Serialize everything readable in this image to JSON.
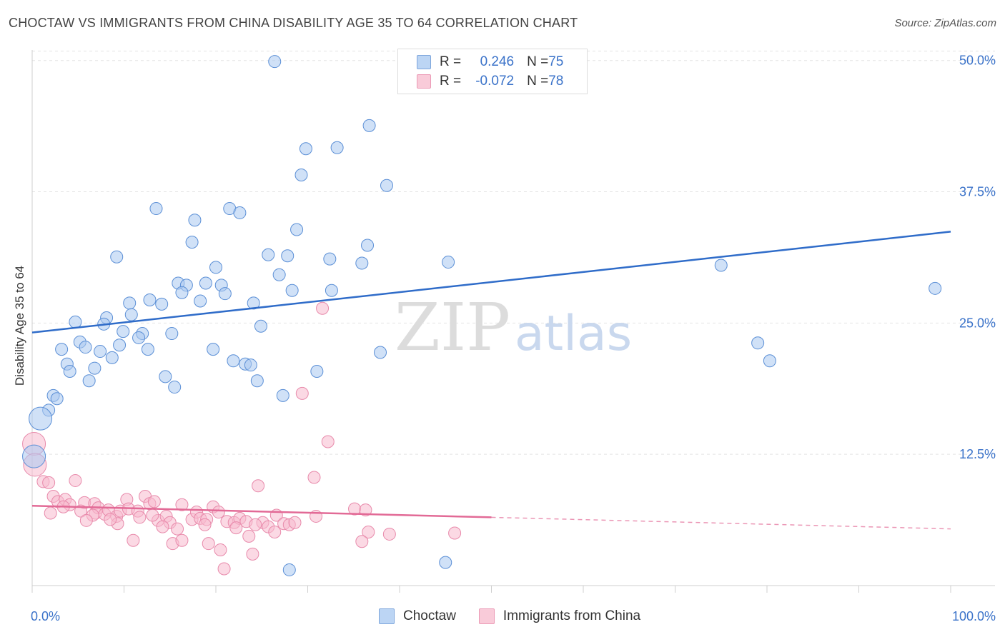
{
  "title": "CHOCTAW VS IMMIGRANTS FROM CHINA DISABILITY AGE 35 TO 64 CORRELATION CHART",
  "source": "Source: ZipAtlas.com",
  "watermark": {
    "zip": "ZIP",
    "atlas": "atlas"
  },
  "legend_top": {
    "rows": [
      {
        "r_label": "R = ",
        "r_value": "0.246",
        "n_label": "N = ",
        "n_value": "75",
        "color": "#a9c8f0"
      },
      {
        "r_label": "R = ",
        "r_value": "-0.072",
        "n_label": "N = ",
        "n_value": "78",
        "color": "#f7b9cd"
      }
    ]
  },
  "legend_bottom": {
    "items": [
      {
        "label": "Choctaw",
        "color": "#a9c8f0"
      },
      {
        "label": "Immigrants from China",
        "color": "#f7b9cd"
      }
    ]
  },
  "chart_data": {
    "type": "scatter",
    "title": "CHOCTAW VS IMMIGRANTS FROM CHINA DISABILITY AGE 35 TO 64 CORRELATION CHART",
    "xlabel": "",
    "ylabel": "Disability Age 35 to 64",
    "xlim": [
      0,
      100
    ],
    "ylim": [
      0,
      51
    ],
    "x_tick_labels": [
      "0.0%",
      "100.0%"
    ],
    "y_ticks": [
      12.5,
      25.0,
      37.5,
      50.0
    ],
    "y_tick_labels": [
      "12.5%",
      "25.0%",
      "37.5%",
      "50.0%"
    ],
    "grid": true,
    "legend_position": "top-center",
    "series": [
      {
        "name": "Choctaw",
        "color": "#5b8fd6",
        "fill": "#a9c8f0",
        "trend": {
          "x": [
            0,
            100
          ],
          "y": [
            24.1,
            33.7
          ],
          "style": "solid",
          "color": "#2f6cc9"
        },
        "points": [
          [
            26.4,
            49.9
          ],
          [
            36.7,
            43.8
          ],
          [
            29.8,
            41.6
          ],
          [
            33.2,
            41.7
          ],
          [
            13.5,
            35.9
          ],
          [
            21.5,
            35.9
          ],
          [
            22.6,
            35.5
          ],
          [
            17.7,
            34.8
          ],
          [
            29.3,
            39.1
          ],
          [
            28.8,
            33.9
          ],
          [
            17.4,
            32.7
          ],
          [
            36.5,
            32.4
          ],
          [
            38.6,
            38.1
          ],
          [
            9.2,
            31.3
          ],
          [
            25.7,
            31.5
          ],
          [
            27.8,
            31.4
          ],
          [
            32.4,
            31.1
          ],
          [
            35.9,
            30.7
          ],
          [
            20.0,
            30.3
          ],
          [
            26.9,
            29.6
          ],
          [
            15.9,
            28.8
          ],
          [
            18.9,
            28.8
          ],
          [
            16.8,
            28.6
          ],
          [
            20.6,
            28.6
          ],
          [
            28.3,
            28.1
          ],
          [
            32.6,
            28.1
          ],
          [
            16.3,
            27.9
          ],
          [
            21.0,
            27.8
          ],
          [
            12.8,
            27.2
          ],
          [
            18.3,
            27.1
          ],
          [
            10.6,
            26.9
          ],
          [
            14.1,
            26.8
          ],
          [
            24.1,
            26.9
          ],
          [
            8.1,
            25.5
          ],
          [
            10.8,
            25.8
          ],
          [
            4.7,
            25.1
          ],
          [
            7.8,
            24.9
          ],
          [
            24.9,
            24.7
          ],
          [
            12.0,
            24.0
          ],
          [
            15.2,
            24.0
          ],
          [
            9.9,
            24.2
          ],
          [
            5.2,
            23.2
          ],
          [
            11.6,
            23.6
          ],
          [
            9.5,
            22.9
          ],
          [
            3.2,
            22.5
          ],
          [
            5.8,
            22.7
          ],
          [
            7.4,
            22.3
          ],
          [
            12.6,
            22.5
          ],
          [
            19.7,
            22.5
          ],
          [
            8.7,
            21.7
          ],
          [
            21.9,
            21.4
          ],
          [
            23.2,
            21.1
          ],
          [
            23.8,
            21.0
          ],
          [
            3.8,
            21.1
          ],
          [
            4.1,
            20.4
          ],
          [
            6.8,
            20.7
          ],
          [
            31.0,
            20.4
          ],
          [
            14.5,
            19.9
          ],
          [
            6.2,
            19.5
          ],
          [
            15.5,
            18.9
          ],
          [
            24.5,
            19.5
          ],
          [
            27.3,
            18.1
          ],
          [
            2.3,
            18.1
          ],
          [
            2.7,
            17.8
          ],
          [
            1.8,
            16.7
          ],
          [
            0.9,
            15.9
          ],
          [
            37.9,
            22.2
          ],
          [
            45.3,
            30.8
          ],
          [
            75.0,
            30.5
          ],
          [
            79.0,
            23.1
          ],
          [
            80.3,
            21.4
          ],
          [
            98.3,
            28.3
          ],
          [
            45.0,
            2.2
          ],
          [
            0.2,
            12.3
          ],
          [
            28.0,
            1.5
          ]
        ]
      },
      {
        "name": "Immigrants from China",
        "color": "#e88aab",
        "fill": "#f7b9cd",
        "trend": {
          "x": [
            0,
            50,
            100
          ],
          "y": [
            7.6,
            6.5,
            5.4
          ],
          "solid_until": 50,
          "color": "#e26a96"
        },
        "points": [
          [
            31.6,
            26.4
          ],
          [
            29.4,
            18.3
          ],
          [
            32.2,
            13.7
          ],
          [
            0.2,
            13.5
          ],
          [
            0.3,
            11.5
          ],
          [
            1.2,
            9.9
          ],
          [
            1.8,
            9.8
          ],
          [
            4.7,
            10.0
          ],
          [
            24.6,
            9.5
          ],
          [
            30.7,
            10.3
          ],
          [
            2.3,
            8.5
          ],
          [
            2.8,
            8.0
          ],
          [
            3.6,
            8.2
          ],
          [
            4.1,
            7.7
          ],
          [
            3.4,
            7.5
          ],
          [
            5.7,
            7.9
          ],
          [
            6.8,
            7.8
          ],
          [
            5.3,
            7.1
          ],
          [
            6.9,
            6.9
          ],
          [
            7.2,
            7.4
          ],
          [
            7.9,
            6.8
          ],
          [
            8.3,
            7.2
          ],
          [
            9.2,
            6.6
          ],
          [
            9.6,
            7.1
          ],
          [
            10.3,
            8.2
          ],
          [
            10.5,
            7.3
          ],
          [
            11.5,
            7.1
          ],
          [
            11.7,
            6.5
          ],
          [
            12.3,
            8.5
          ],
          [
            12.8,
            7.8
          ],
          [
            13.3,
            8.0
          ],
          [
            13.7,
            6.2
          ],
          [
            14.6,
            6.6
          ],
          [
            15.0,
            6.0
          ],
          [
            15.8,
            5.4
          ],
          [
            16.3,
            7.7
          ],
          [
            17.4,
            6.3
          ],
          [
            17.9,
            7.0
          ],
          [
            18.3,
            6.4
          ],
          [
            19.0,
            6.3
          ],
          [
            19.7,
            7.5
          ],
          [
            20.3,
            7.0
          ],
          [
            21.2,
            6.1
          ],
          [
            22.0,
            6.0
          ],
          [
            22.6,
            6.4
          ],
          [
            23.3,
            6.1
          ],
          [
            25.1,
            6.0
          ],
          [
            25.7,
            5.6
          ],
          [
            26.6,
            6.7
          ],
          [
            27.4,
            5.9
          ],
          [
            28.0,
            5.8
          ],
          [
            28.6,
            6.0
          ],
          [
            30.9,
            6.6
          ],
          [
            35.1,
            7.3
          ],
          [
            36.3,
            7.2
          ],
          [
            36.6,
            5.1
          ],
          [
            35.9,
            4.2
          ],
          [
            38.9,
            4.9
          ],
          [
            46.0,
            5.0
          ],
          [
            11.0,
            4.3
          ],
          [
            15.3,
            4.0
          ],
          [
            16.3,
            4.3
          ],
          [
            19.2,
            4.0
          ],
          [
            20.5,
            3.4
          ],
          [
            22.2,
            5.5
          ],
          [
            23.6,
            4.7
          ],
          [
            24.0,
            3.0
          ],
          [
            26.4,
            5.1
          ],
          [
            9.3,
            5.9
          ],
          [
            13.1,
            6.7
          ],
          [
            8.5,
            6.3
          ],
          [
            6.6,
            6.7
          ],
          [
            20.9,
            1.6
          ],
          [
            2.0,
            6.9
          ],
          [
            5.9,
            6.2
          ],
          [
            24.3,
            5.8
          ],
          [
            18.8,
            5.8
          ],
          [
            14.2,
            5.6
          ]
        ]
      }
    ]
  }
}
